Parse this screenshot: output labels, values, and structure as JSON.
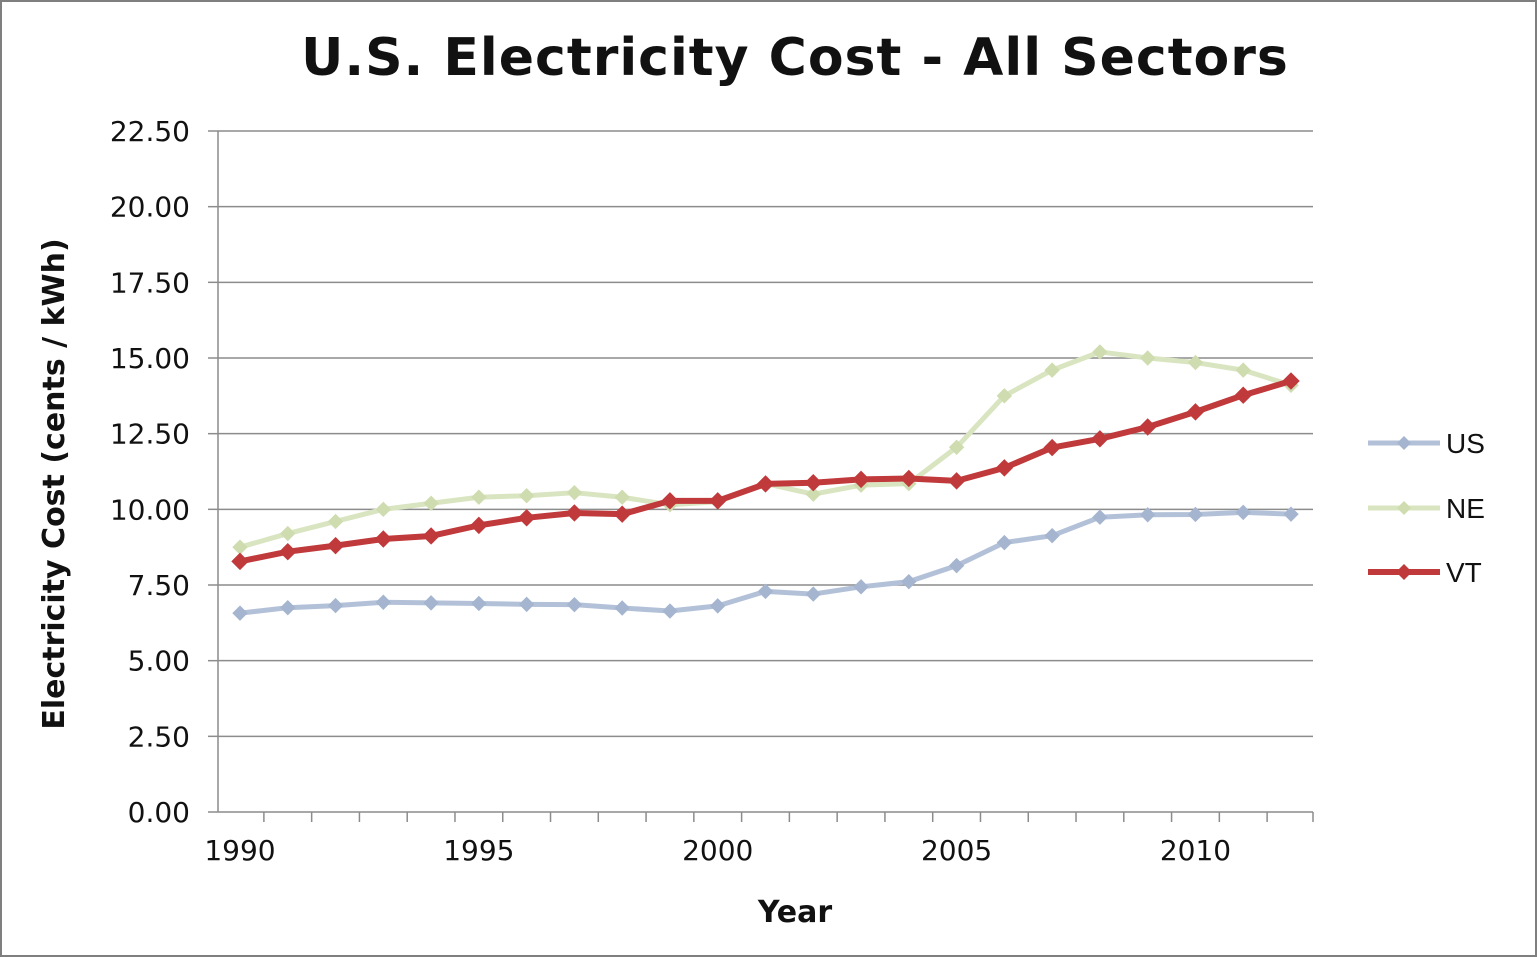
{
  "chart_data": {
    "type": "line",
    "title": "U.S. Electricity Cost - All Sectors",
    "xlabel": "Year",
    "ylabel": "Electricity Cost (cents / kWh)",
    "ylim": [
      0,
      22.5
    ],
    "xlim": [
      1990,
      2012
    ],
    "y_ticks": [
      "0.00",
      "2.50",
      "5.00",
      "7.50",
      "10.00",
      "12.50",
      "15.00",
      "17.50",
      "20.00",
      "22.50"
    ],
    "x_tick_labels": [
      "1990",
      "1995",
      "2000",
      "2005",
      "2010"
    ],
    "grid": "horizontal",
    "legend_position": "right",
    "x": [
      1990,
      1991,
      1992,
      1993,
      1994,
      1995,
      1996,
      1997,
      1998,
      1999,
      2000,
      2001,
      2002,
      2003,
      2004,
      2005,
      2006,
      2007,
      2008,
      2009,
      2010,
      2011,
      2012
    ],
    "series": [
      {
        "name": "US",
        "color": "#b3c1d8",
        "values": [
          6.57,
          6.75,
          6.82,
          6.93,
          6.91,
          6.89,
          6.86,
          6.85,
          6.74,
          6.64,
          6.81,
          7.29,
          7.2,
          7.44,
          7.61,
          8.14,
          8.9,
          9.13,
          9.74,
          9.82,
          9.83,
          9.9,
          9.84
        ]
      },
      {
        "name": "NE",
        "color": "#d9e5c0",
        "values": [
          8.75,
          9.2,
          9.6,
          10.0,
          10.2,
          10.4,
          10.45,
          10.55,
          10.4,
          10.15,
          10.25,
          10.85,
          10.5,
          10.8,
          10.85,
          12.05,
          13.75,
          14.6,
          15.2,
          15.0,
          14.85,
          14.6,
          14.1
        ]
      },
      {
        "name": "VT",
        "color": "#c0393b",
        "values": [
          8.28,
          8.6,
          8.8,
          9.02,
          9.12,
          9.47,
          9.72,
          9.88,
          9.84,
          10.28,
          10.28,
          10.84,
          10.88,
          10.99,
          11.02,
          10.94,
          11.37,
          12.04,
          12.33,
          12.72,
          13.22,
          13.77,
          14.24
        ]
      }
    ]
  }
}
